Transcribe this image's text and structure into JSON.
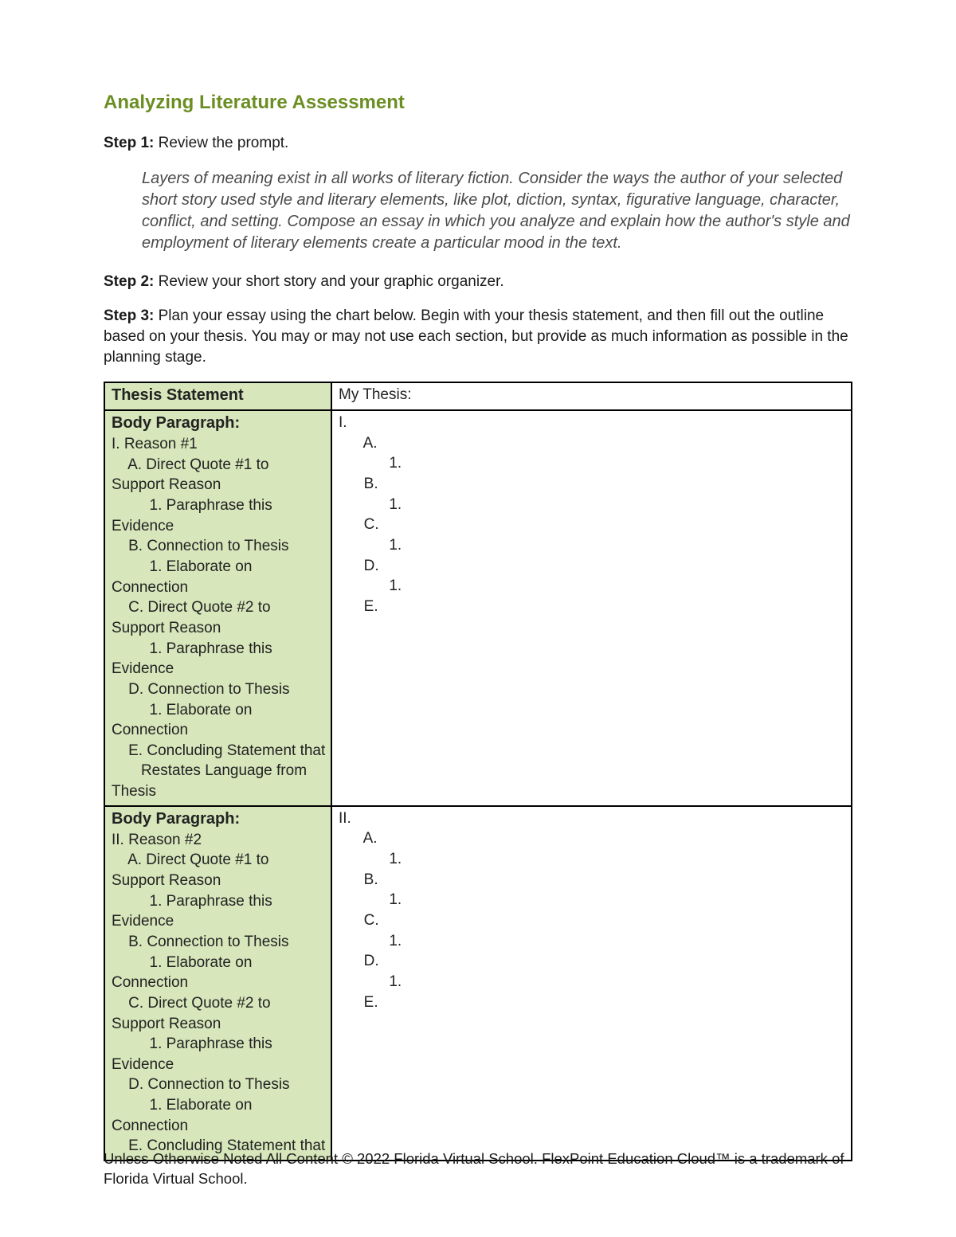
{
  "title": "Analyzing Literature Assessment",
  "step1": {
    "label": "Step 1:",
    "text": " Review the prompt.",
    "prompt": "Layers of meaning exist in all works of literary fiction. Consider the ways the author of your selected short story used style and literary elements, like plot, diction, syntax, figurative language, character, conflict, and setting. Compose an essay in which you analyze and explain how the author's style and employment of literary elements create a particular mood in the text."
  },
  "step2": {
    "label": "Step 2:",
    "text": " Review your short story and your graphic organizer."
  },
  "step3": {
    "label": "Step 3:",
    "text": " Plan your essay using the chart below. Begin with your thesis statement, and then fill out the outline based on your thesis. You may or may not use each section, but provide as much information as possible in the planning stage."
  },
  "table": {
    "row1": {
      "left_header": "Thesis Statement",
      "right": "My Thesis:"
    },
    "row2": {
      "left_header": "Body Paragraph:",
      "left_lines": [
        "I. Reason #1",
        "    A. Direct Quote #1 to",
        "Support Reason",
        "         1. Paraphrase this",
        "Evidence",
        "    B. Connection to Thesis",
        "         1. Elaborate on",
        "Connection",
        "    C. Direct Quote #2 to",
        "Support Reason",
        "         1. Paraphrase this",
        "Evidence",
        "    D. Connection to Thesis",
        "         1. Elaborate on",
        "Connection",
        "    E. Concluding Statement that",
        "       Restates Language from",
        "Thesis"
      ],
      "right_lines": [
        "I.",
        "      A.",
        "            1.",
        "      B.",
        "            1.",
        "      C.",
        "            1.",
        "      D.",
        "            1.",
        "      E."
      ]
    },
    "row3": {
      "left_header": "Body Paragraph:",
      "left_lines": [
        "II. Reason #2",
        "    A. Direct Quote #1 to",
        "Support Reason",
        "         1. Paraphrase this",
        "Evidence",
        "    B. Connection to Thesis",
        "         1. Elaborate on",
        "Connection",
        "    C. Direct Quote #2 to",
        "Support Reason",
        "         1. Paraphrase this",
        "Evidence",
        "    D. Connection to Thesis",
        "         1. Elaborate on",
        "Connection",
        "    E. Concluding Statement that"
      ],
      "right_lines": [
        "II.",
        "      A.",
        "            1.",
        "      B.",
        "            1.",
        "      C.",
        "            1.",
        "      D.",
        "            1.",
        "      E."
      ]
    }
  },
  "footer": "Unless Otherwise Noted All Content © 2022 Florida Virtual School. FlexPoint Education Cloud™ is a trademark of Florida Virtual School."
}
